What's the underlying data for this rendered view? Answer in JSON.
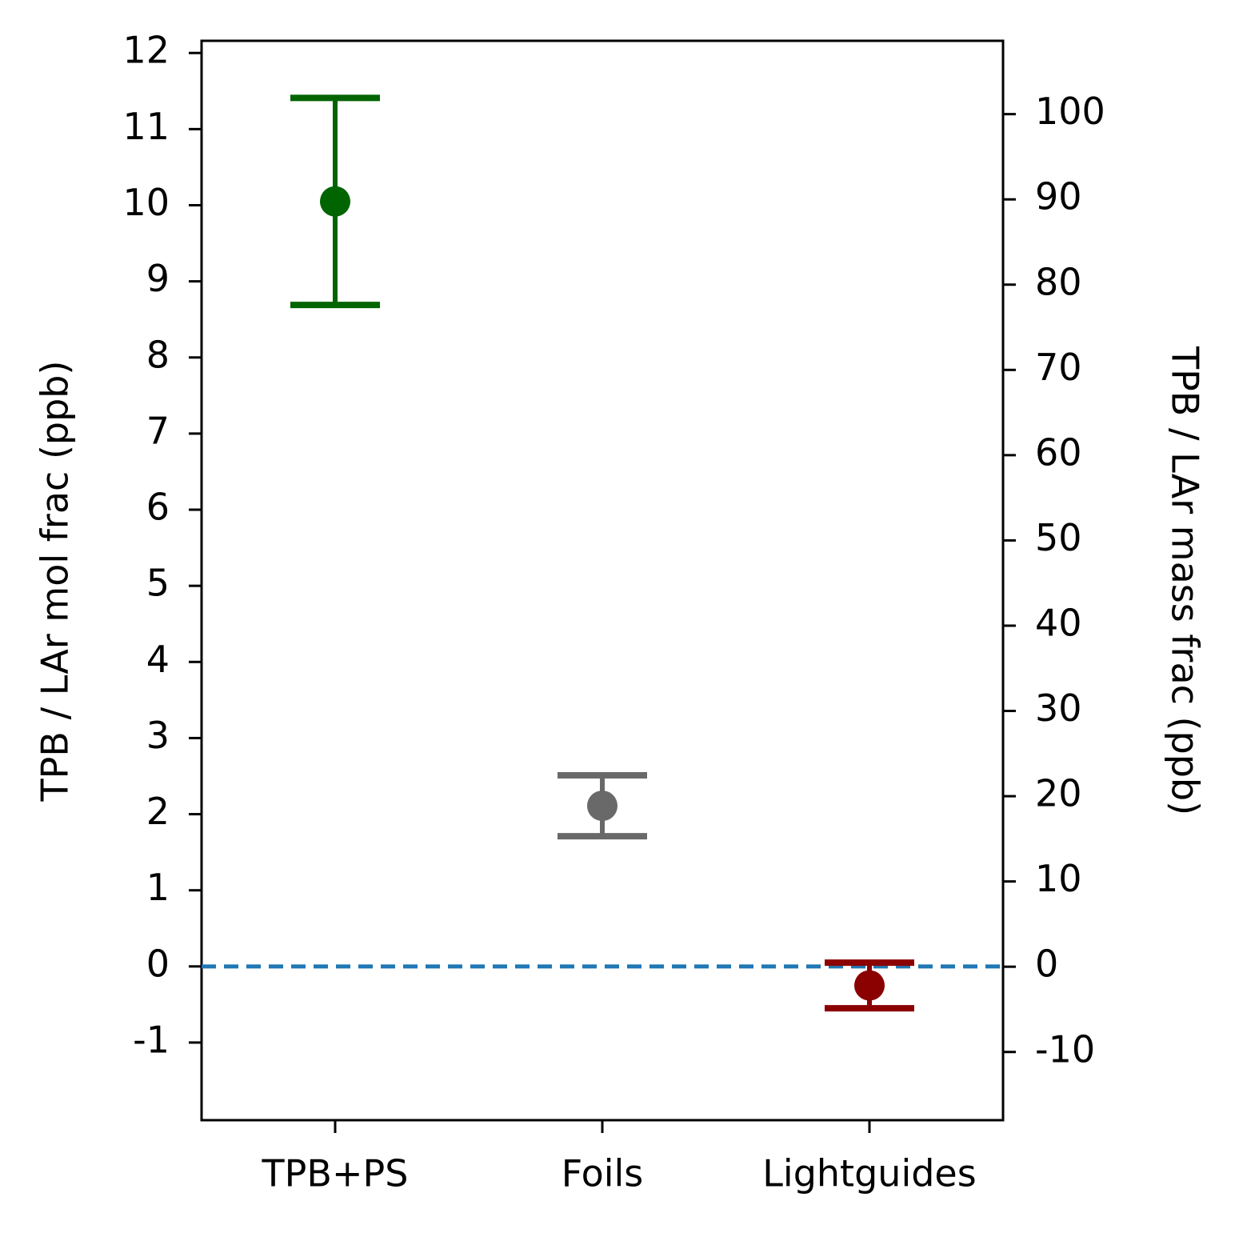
{
  "chart_data": {
    "type": "errorbar",
    "ylabel": "TPB / LAr mol frac (ppb)",
    "y2label": "TPB / LAr mass frac (ppb)",
    "categories": [
      "TPB+PS",
      "Foils",
      "Lightguides"
    ],
    "values": [
      10.05,
      2.11,
      -0.25
    ],
    "errors": [
      1.36,
      0.4,
      0.3
    ],
    "colors": [
      "#006400",
      "#696969",
      "#8b0000"
    ],
    "ylim": [
      -2.02,
      12.16
    ],
    "yticks": [
      -1,
      0,
      1,
      2,
      3,
      4,
      5,
      6,
      7,
      8,
      9,
      10,
      11,
      12
    ],
    "y2lim": [
      -18.0,
      108.6
    ],
    "y2ticks": [
      -10,
      0,
      10,
      20,
      30,
      40,
      50,
      60,
      70,
      80,
      90,
      100
    ],
    "hline": {
      "value": 0,
      "color": "#1f77b4"
    }
  }
}
